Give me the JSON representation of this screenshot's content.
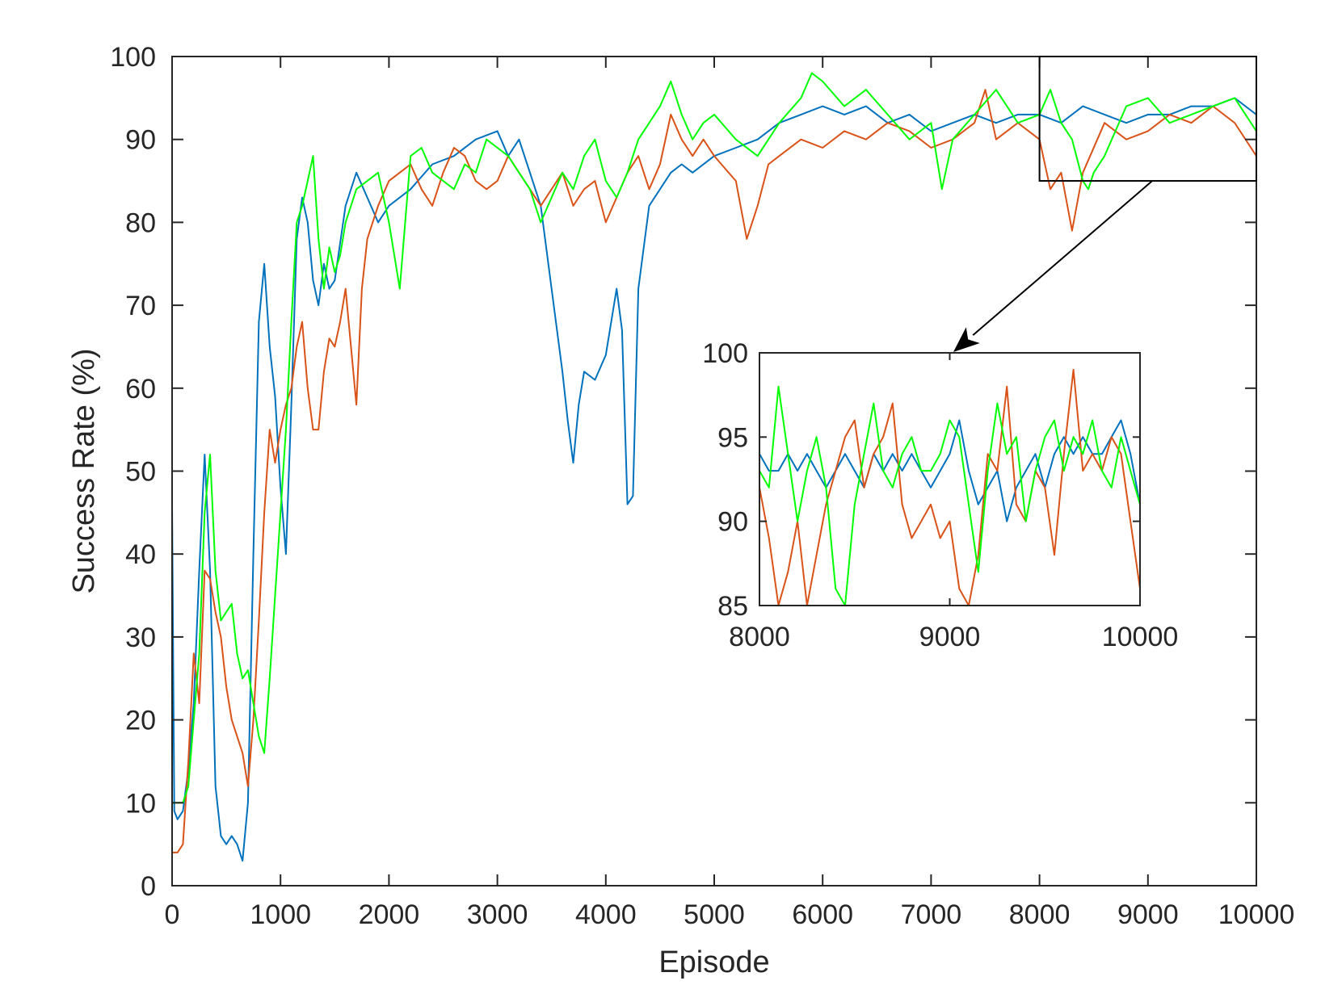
{
  "chart_data": [
    {
      "type": "line",
      "xlabel": "Episode",
      "ylabel": "Success Rate (%)",
      "xlim": [
        0,
        10000
      ],
      "ylim": [
        0,
        100
      ],
      "xticks": [
        0,
        1000,
        2000,
        3000,
        4000,
        5000,
        6000,
        7000,
        8000,
        9000,
        10000
      ],
      "yticks": [
        0,
        10,
        20,
        30,
        40,
        50,
        60,
        70,
        80,
        90,
        100
      ],
      "xtick_labels": [
        "0",
        "1000",
        "2000",
        "3000",
        "4000",
        "5000",
        "6000",
        "7000",
        "8000",
        "9000",
        "10000"
      ],
      "ytick_labels": [
        "0",
        "10",
        "20",
        "30",
        "40",
        "50",
        "60",
        "70",
        "80",
        "90",
        "100"
      ],
      "grid": false,
      "series": [
        {
          "color": "#0072BD",
          "x": [
            0,
            20,
            50,
            100,
            150,
            200,
            250,
            300,
            350,
            400,
            450,
            500,
            550,
            600,
            650,
            700,
            750,
            800,
            850,
            900,
            950,
            1000,
            1050,
            1100,
            1150,
            1200,
            1250,
            1300,
            1350,
            1400,
            1450,
            1500,
            1600,
            1700,
            1800,
            1900,
            2000,
            2200,
            2400,
            2600,
            2800,
            3000,
            3100,
            3200,
            3300,
            3400,
            3500,
            3600,
            3650,
            3700,
            3750,
            3800,
            3900,
            4000,
            4100,
            4150,
            4200,
            4250,
            4300,
            4400,
            4500,
            4600,
            4700,
            4800,
            5000,
            5200,
            5400,
            5600,
            5800,
            6000,
            6200,
            6400,
            6600,
            6800,
            7000,
            7200,
            7400,
            7600,
            7800,
            8000,
            8200,
            8400,
            8600,
            8800,
            9000,
            9200,
            9400,
            9600,
            9800,
            10000
          ],
          "y": [
            46,
            9,
            8,
            9,
            14,
            22,
            38,
            52,
            38,
            12,
            6,
            5,
            6,
            5,
            3,
            10,
            40,
            68,
            75,
            65,
            59,
            48,
            40,
            58,
            78,
            83,
            80,
            73,
            70,
            75,
            72,
            73,
            82,
            86,
            83,
            80,
            82,
            84,
            87,
            88,
            90,
            91,
            88,
            90,
            86,
            82,
            72,
            62,
            56,
            51,
            58,
            62,
            61,
            64,
            72,
            67,
            46,
            47,
            72,
            82,
            84,
            86,
            87,
            86,
            88,
            89,
            90,
            92,
            93,
            94,
            93,
            94,
            92,
            93,
            91,
            92,
            93,
            92,
            93,
            93,
            92,
            94,
            93,
            92,
            93,
            93,
            94,
            94,
            95,
            93
          ]
        },
        {
          "color": "#D95319",
          "x": [
            0,
            50,
            100,
            150,
            200,
            250,
            300,
            350,
            400,
            450,
            500,
            550,
            600,
            650,
            700,
            750,
            800,
            850,
            900,
            950,
            1000,
            1050,
            1100,
            1150,
            1200,
            1250,
            1300,
            1350,
            1400,
            1450,
            1500,
            1550,
            1600,
            1650,
            1700,
            1750,
            1800,
            1900,
            2000,
            2100,
            2200,
            2300,
            2400,
            2500,
            2600,
            2700,
            2800,
            2900,
            3000,
            3100,
            3200,
            3300,
            3400,
            3500,
            3600,
            3700,
            3800,
            3900,
            4000,
            4100,
            4200,
            4300,
            4400,
            4500,
            4600,
            4700,
            4800,
            4900,
            5000,
            5200,
            5300,
            5400,
            5500,
            5600,
            5800,
            6000,
            6200,
            6400,
            6600,
            6800,
            7000,
            7200,
            7400,
            7500,
            7600,
            7800,
            8000,
            8100,
            8200,
            8300,
            8400,
            8600,
            8800,
            9000,
            9200,
            9400,
            9600,
            9800,
            10000
          ],
          "y": [
            4,
            4,
            5,
            15,
            28,
            22,
            38,
            37,
            33,
            30,
            24,
            20,
            18,
            16,
            12,
            20,
            32,
            45,
            55,
            51,
            55,
            58,
            60,
            65,
            68,
            60,
            55,
            55,
            62,
            66,
            65,
            68,
            72,
            65,
            58,
            72,
            78,
            82,
            85,
            86,
            87,
            84,
            82,
            86,
            89,
            88,
            85,
            84,
            85,
            88,
            86,
            84,
            82,
            84,
            86,
            82,
            84,
            85,
            80,
            83,
            86,
            88,
            84,
            87,
            93,
            90,
            88,
            90,
            88,
            85,
            78,
            82,
            87,
            88,
            90,
            89,
            91,
            90,
            92,
            91,
            89,
            90,
            92,
            96,
            90,
            92,
            90,
            84,
            86,
            79,
            86,
            92,
            90,
            91,
            93,
            92,
            94,
            92,
            88
          ]
        },
        {
          "color": "#00FF00",
          "x": [
            0,
            50,
            100,
            150,
            200,
            250,
            300,
            350,
            400,
            450,
            500,
            550,
            600,
            650,
            700,
            750,
            800,
            850,
            900,
            950,
            1000,
            1050,
            1100,
            1150,
            1200,
            1250,
            1300,
            1350,
            1400,
            1450,
            1500,
            1550,
            1600,
            1650,
            1700,
            1800,
            1900,
            2000,
            2100,
            2200,
            2300,
            2400,
            2500,
            2600,
            2700,
            2800,
            2900,
            3000,
            3100,
            3200,
            3300,
            3400,
            3500,
            3600,
            3700,
            3800,
            3900,
            4000,
            4100,
            4200,
            4300,
            4400,
            4500,
            4600,
            4700,
            4800,
            4900,
            5000,
            5200,
            5400,
            5600,
            5800,
            5900,
            6000,
            6200,
            6400,
            6600,
            6800,
            7000,
            7100,
            7200,
            7400,
            7600,
            7800,
            8000,
            8100,
            8200,
            8300,
            8400,
            8450,
            8500,
            8600,
            8800,
            9000,
            9200,
            9400,
            9600,
            9800,
            10000
          ],
          "y": [
            10,
            10,
            10,
            12,
            20,
            28,
            45,
            52,
            38,
            32,
            33,
            34,
            28,
            25,
            26,
            22,
            18,
            16,
            25,
            35,
            45,
            55,
            68,
            80,
            82,
            85,
            88,
            78,
            72,
            77,
            74,
            76,
            80,
            82,
            84,
            85,
            86,
            80,
            72,
            88,
            89,
            86,
            85,
            84,
            87,
            86,
            90,
            89,
            88,
            86,
            84,
            80,
            83,
            86,
            84,
            88,
            90,
            85,
            83,
            86,
            90,
            92,
            94,
            97,
            93,
            90,
            92,
            93,
            90,
            88,
            92,
            95,
            98,
            97,
            94,
            96,
            93,
            90,
            92,
            84,
            90,
            93,
            96,
            92,
            93,
            96,
            92,
            90,
            85,
            84,
            86,
            88,
            94,
            95,
            92,
            93,
            94,
            95,
            91
          ]
        }
      ]
    },
    {
      "type": "line",
      "xlim": [
        8000,
        10000
      ],
      "ylim": [
        85,
        100
      ],
      "xticks": [
        8000,
        9000,
        10000
      ],
      "yticks": [
        85,
        90,
        95,
        100
      ],
      "xtick_labels": [
        "8000",
        "9000",
        "10000"
      ],
      "ytick_labels": [
        "85",
        "90",
        "95",
        "100"
      ],
      "grid": false,
      "series": [
        {
          "color": "#0072BD",
          "x": [
            8000,
            8050,
            8100,
            8150,
            8200,
            8250,
            8300,
            8350,
            8400,
            8450,
            8500,
            8550,
            8600,
            8650,
            8700,
            8750,
            8800,
            8850,
            8900,
            8950,
            9000,
            9050,
            9100,
            9150,
            9200,
            9250,
            9300,
            9350,
            9400,
            9450,
            9500,
            9550,
            9600,
            9650,
            9700,
            9750,
            9800,
            9850,
            9900,
            9950,
            10000
          ],
          "y": [
            94,
            93,
            93,
            94,
            93,
            94,
            93,
            92,
            93,
            94,
            93,
            92,
            94,
            93,
            94,
            93,
            94,
            93,
            92,
            93,
            94,
            96,
            93,
            91,
            92,
            93,
            90,
            92,
            93,
            94,
            92,
            94,
            95,
            94,
            95,
            94,
            94,
            95,
            96,
            94,
            91
          ]
        },
        {
          "color": "#D95319",
          "x": [
            8000,
            8050,
            8100,
            8150,
            8200,
            8250,
            8300,
            8350,
            8400,
            8450,
            8500,
            8550,
            8600,
            8650,
            8700,
            8750,
            8800,
            8850,
            8900,
            8950,
            9000,
            9050,
            9100,
            9150,
            9200,
            9250,
            9300,
            9350,
            9400,
            9450,
            9500,
            9550,
            9600,
            9650,
            9700,
            9750,
            9800,
            9850,
            9900,
            9950,
            10000
          ],
          "y": [
            92,
            89,
            85,
            87,
            90,
            85,
            88,
            91,
            93,
            95,
            96,
            92,
            94,
            95,
            97,
            91,
            89,
            90,
            91,
            89,
            90,
            86,
            85,
            88,
            94,
            93,
            98,
            91,
            90,
            93,
            92,
            88,
            94,
            99,
            93,
            94,
            93,
            95,
            94,
            90,
            86
          ]
        },
        {
          "color": "#00FF00",
          "x": [
            8000,
            8050,
            8100,
            8150,
            8200,
            8250,
            8300,
            8350,
            8400,
            8450,
            8500,
            8550,
            8600,
            8650,
            8700,
            8750,
            8800,
            8850,
            8900,
            8950,
            9000,
            9050,
            9100,
            9150,
            9200,
            9250,
            9300,
            9350,
            9400,
            9450,
            9500,
            9550,
            9600,
            9650,
            9700,
            9750,
            9800,
            9850,
            9900,
            9950,
            10000
          ],
          "y": [
            93,
            92,
            98,
            94,
            90,
            93,
            95,
            92,
            86,
            85,
            91,
            94,
            97,
            93,
            92,
            94,
            95,
            93,
            93,
            94,
            96,
            95,
            91,
            87,
            93,
            97,
            94,
            95,
            90,
            93,
            95,
            96,
            93,
            95,
            94,
            96,
            93,
            92,
            95,
            93,
            91
          ]
        }
      ]
    }
  ]
}
